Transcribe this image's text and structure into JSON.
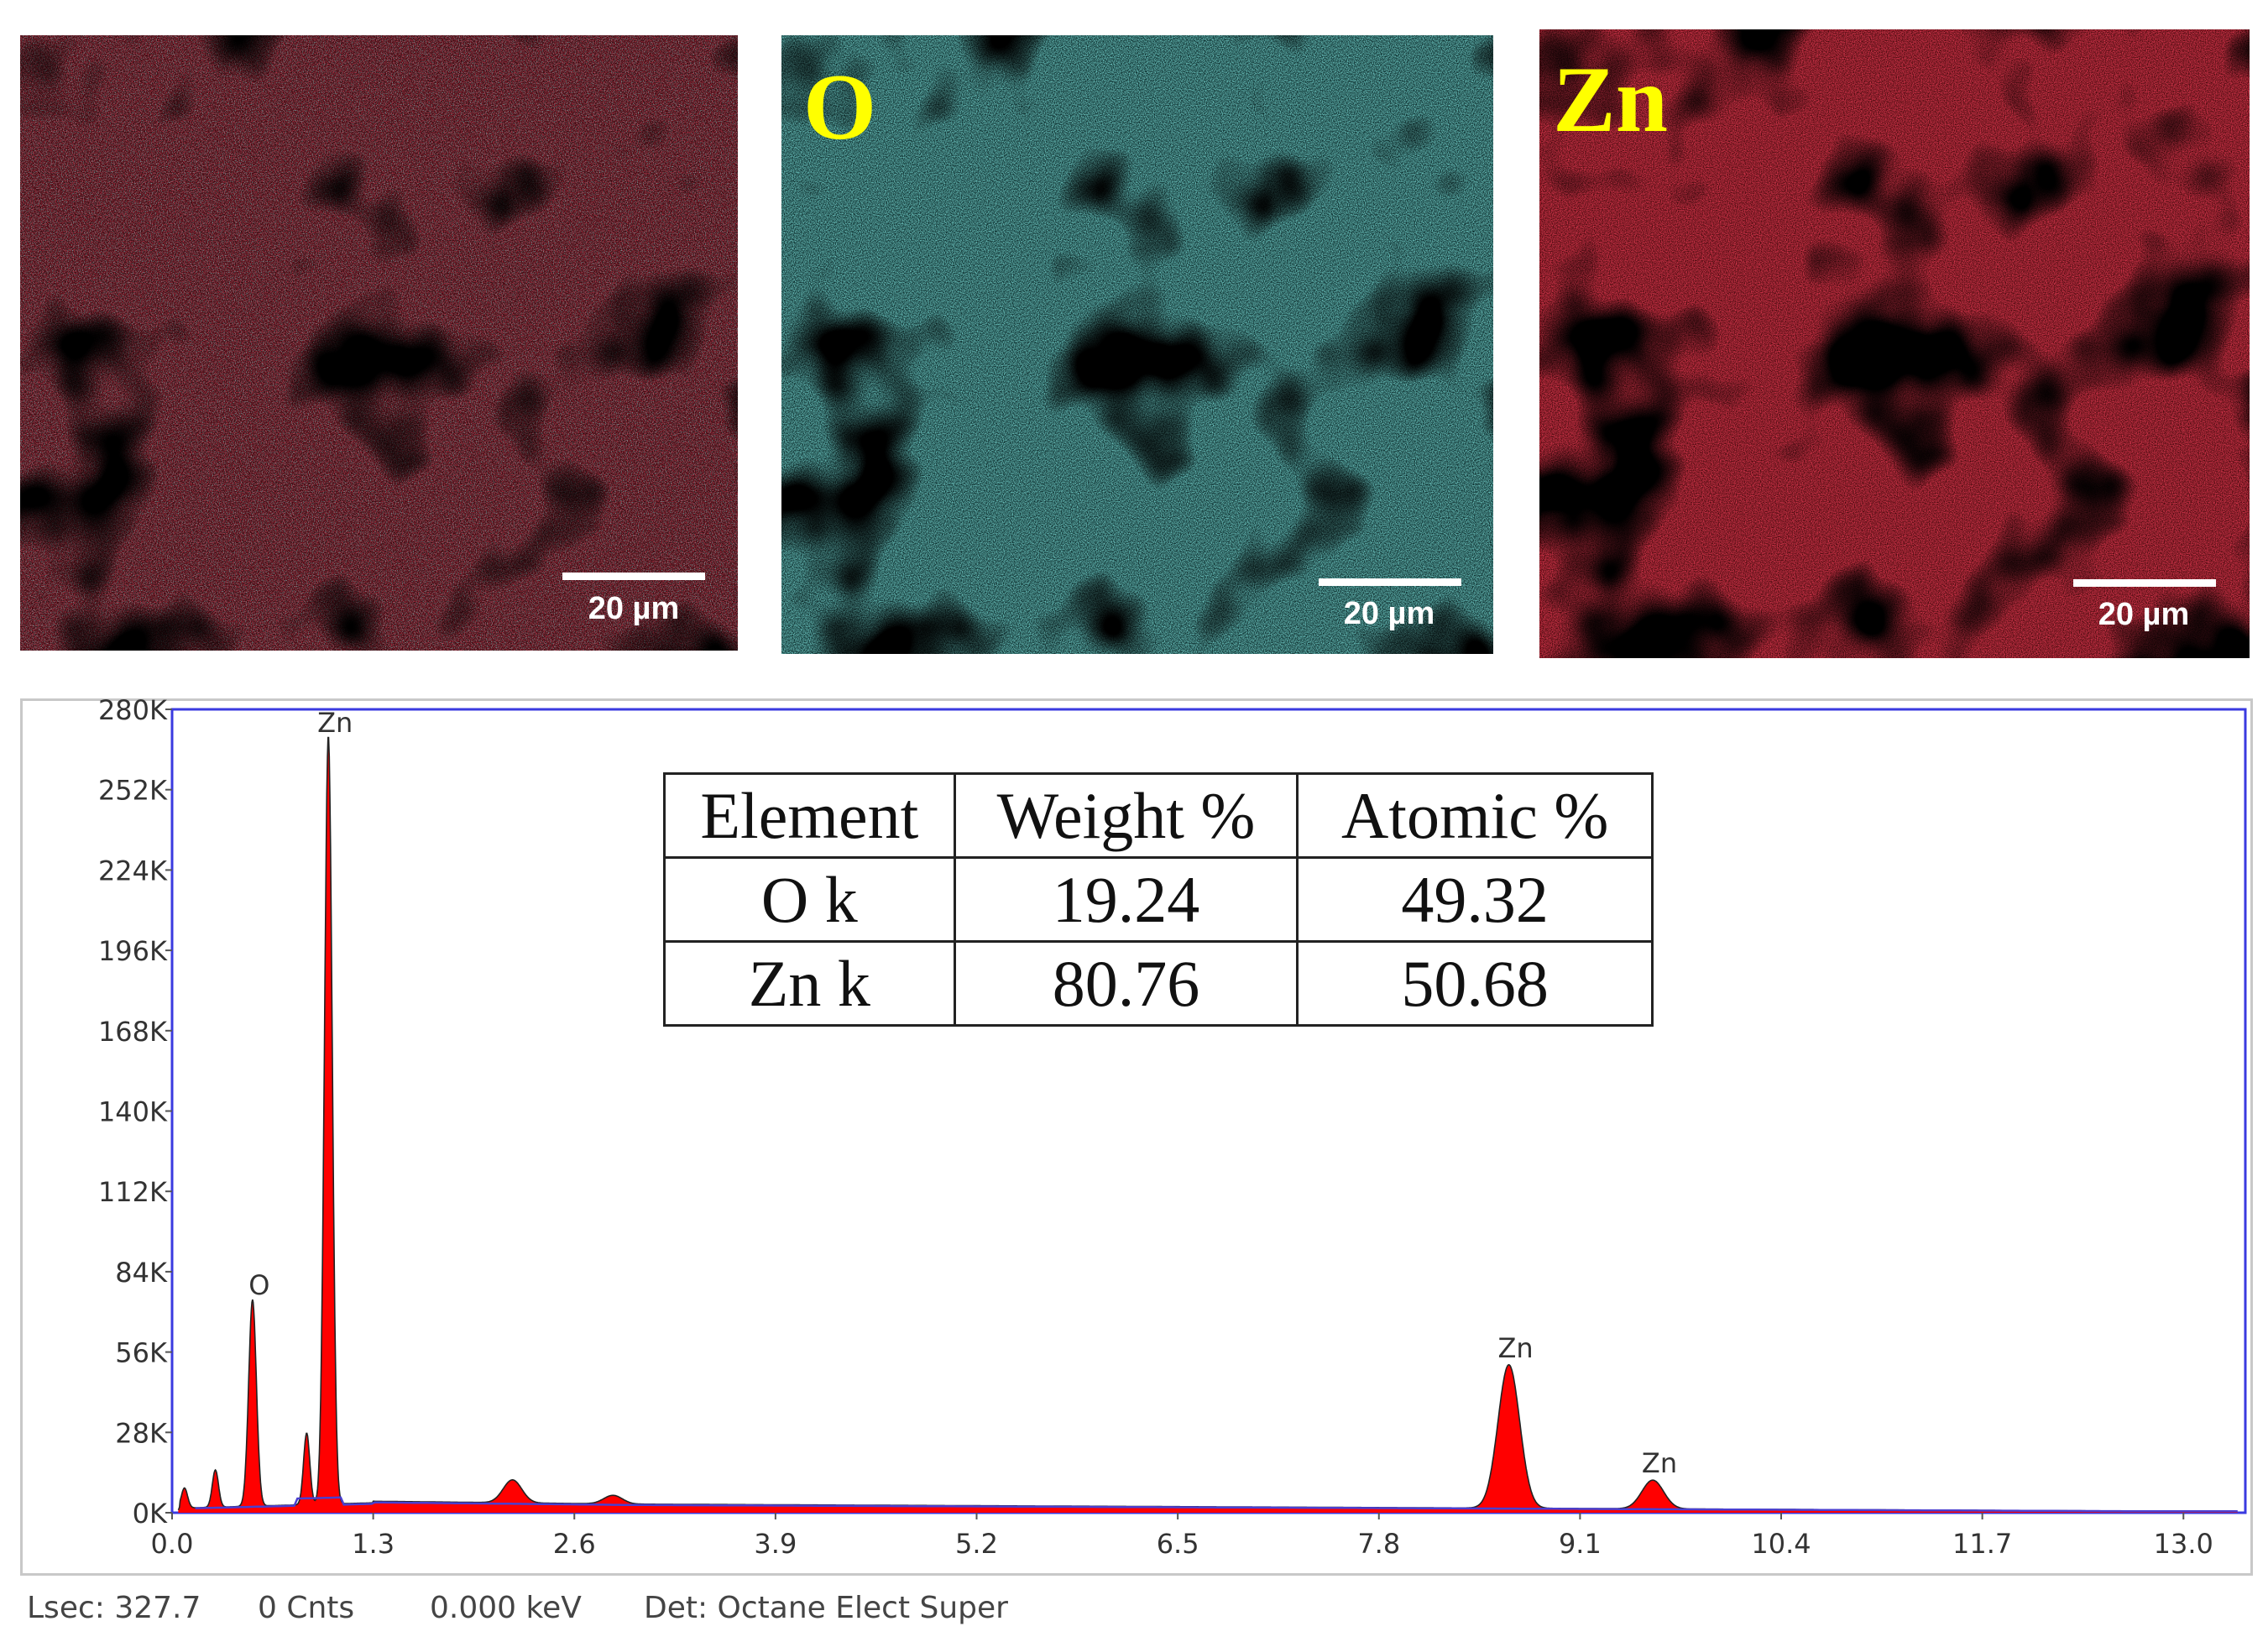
{
  "maps": [
    {
      "name": "overlay",
      "label": "",
      "scale_label": "20 µm",
      "colors": [
        "#b0101a",
        "#2aa6a0"
      ]
    },
    {
      "name": "oxygen",
      "label": "O",
      "scale_label": "20 µm",
      "colors": [
        "#2aa6a0"
      ]
    },
    {
      "name": "zinc",
      "label": "Zn",
      "scale_label": "20 µm",
      "colors": [
        "#b0101a"
      ]
    }
  ],
  "table": {
    "headers": [
      "Element",
      "Weight %",
      "Atomic %"
    ],
    "rows": [
      [
        "O k",
        "19.24",
        "49.32"
      ],
      [
        "Zn k",
        "80.76",
        "50.68"
      ]
    ]
  },
  "chart_data": {
    "type": "area",
    "title": "",
    "xlabel": "",
    "ylabel": "",
    "xlim": [
      0,
      13.4
    ],
    "ylim": [
      0,
      280000
    ],
    "x_ticks": [
      "0.0",
      "1.3",
      "2.6",
      "3.9",
      "5.2",
      "6.5",
      "7.8",
      "9.1",
      "10.4",
      "11.7",
      "13.0"
    ],
    "x_tick_values": [
      0,
      1.3,
      2.6,
      3.9,
      5.2,
      6.5,
      7.8,
      9.1,
      10.4,
      11.7,
      13.0
    ],
    "y_ticks": [
      "0K",
      "28K",
      "56K",
      "84K",
      "112K",
      "140K",
      "168K",
      "196K",
      "224K",
      "252K",
      "280K"
    ],
    "y_tick_values": [
      0,
      28000,
      56000,
      84000,
      112000,
      140000,
      168000,
      196000,
      224000,
      252000,
      280000
    ],
    "peaks": [
      {
        "label": "O",
        "energy": 0.52,
        "counts": 72000
      },
      {
        "label": "Zn",
        "energy": 1.01,
        "counts": 268000
      },
      {
        "label": "Zn",
        "energy": 8.64,
        "counts": 50000
      },
      {
        "label": "Zn",
        "energy": 9.57,
        "counts": 10000
      }
    ],
    "minor_peaks": [
      {
        "energy": 0.08,
        "counts": 7000
      },
      {
        "energy": 0.28,
        "counts": 13000
      },
      {
        "energy": 0.87,
        "counts": 25000
      },
      {
        "energy": 2.2,
        "counts": 8000
      },
      {
        "energy": 2.85,
        "counts": 3000
      }
    ],
    "spectrum_color": "#ff0000",
    "background_color": "#4a3fd0",
    "frame_color": "#3a3ae0"
  },
  "status": {
    "lsec": "Lsec: 327.7",
    "cnts": "0 Cnts",
    "kev": "0.000 keV",
    "det": "Det: Octane Elect Super"
  }
}
